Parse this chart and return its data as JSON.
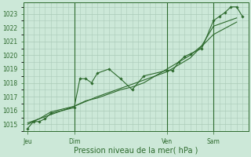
{
  "bg_color": "#cce8d8",
  "grid_color": "#aacbb8",
  "line_color": "#2d6a2d",
  "marker_color": "#2d6a2d",
  "ylim": [
    1014.5,
    1023.8
  ],
  "yticks": [
    1015,
    1016,
    1017,
    1018,
    1019,
    1020,
    1021,
    1022,
    1023
  ],
  "xlabel": "Pression niveau de la mer( hPa )",
  "day_labels": [
    "Jeu",
    "Dim",
    "Ven",
    "Sam"
  ],
  "day_positions": [
    0,
    24,
    72,
    96
  ],
  "xlim": [
    -2,
    114
  ],
  "series1_x": [
    0,
    3,
    6,
    9,
    12,
    24,
    27,
    30,
    33,
    36,
    42,
    48,
    54,
    60,
    72,
    75,
    78,
    81,
    84,
    90,
    96,
    99,
    102,
    105,
    108,
    111
  ],
  "series1_y": [
    1014.7,
    1015.2,
    1015.2,
    1015.4,
    1015.8,
    1016.2,
    1018.3,
    1018.3,
    1018.0,
    1018.7,
    1019.0,
    1018.3,
    1017.5,
    1018.5,
    1018.9,
    1018.9,
    1019.5,
    1019.9,
    1020.1,
    1020.5,
    1022.5,
    1022.8,
    1023.1,
    1023.5,
    1023.5,
    1022.8
  ],
  "series2_x": [
    0,
    6,
    12,
    24,
    30,
    36,
    42,
    48,
    54,
    60,
    72,
    78,
    84,
    90,
    96,
    102,
    108
  ],
  "series2_y": [
    1015.0,
    1015.4,
    1015.9,
    1016.3,
    1016.7,
    1016.9,
    1017.2,
    1017.5,
    1017.7,
    1018.0,
    1019.0,
    1019.5,
    1020.0,
    1020.7,
    1022.1,
    1022.4,
    1022.7
  ],
  "series3_x": [
    0,
    12,
    24,
    36,
    48,
    60,
    72,
    84,
    96,
    108
  ],
  "series3_y": [
    1015.1,
    1015.7,
    1016.3,
    1017.0,
    1017.6,
    1018.2,
    1018.8,
    1019.8,
    1021.5,
    1022.4
  ],
  "vline_positions": [
    24,
    72,
    96
  ],
  "ytick_fontsize": 5.5,
  "xtick_fontsize": 5.5,
  "xlabel_fontsize": 7.0
}
